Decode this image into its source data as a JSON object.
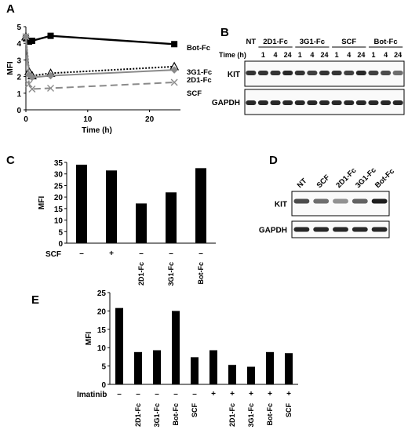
{
  "panels": {
    "A": {
      "letter": "A",
      "chart_data": {
        "type": "line",
        "xlabel": "Time (h)",
        "ylabel": "MFI",
        "xlim": [
          0,
          25
        ],
        "ylim": [
          0,
          5
        ],
        "xticks": [
          0,
          10,
          20
        ],
        "yticks": [
          0,
          1,
          2,
          3,
          4,
          5
        ],
        "series": [
          {
            "name": "Bot-Fc",
            "x": [
              0,
              0.5,
              1,
              4,
              24
            ],
            "values": [
              4.3,
              4.1,
              4.15,
              4.45,
              3.95
            ],
            "color": "#000000",
            "style": "solid",
            "marker": "square"
          },
          {
            "name": "3G1-Fc",
            "x": [
              0,
              0.5,
              1,
              4,
              24
            ],
            "values": [
              4.4,
              2.3,
              2.05,
              2.2,
              2.6
            ],
            "color": "#000000",
            "style": "dotted",
            "marker": "triangle"
          },
          {
            "name": "2D1-Fc",
            "x": [
              0,
              0.5,
              1,
              4,
              24
            ],
            "values": [
              4.4,
              2.1,
              1.95,
              2.05,
              2.4
            ],
            "color": "#8a8a8a",
            "style": "solid",
            "marker": "diamond"
          },
          {
            "name": "SCF",
            "x": [
              0,
              0.5,
              1,
              4,
              24
            ],
            "values": [
              4.4,
              1.55,
              1.25,
              1.3,
              1.65
            ],
            "color": "#8a8a8a",
            "style": "dashed",
            "marker": "x"
          }
        ]
      }
    },
    "B": {
      "letter": "B",
      "groups": [
        "NT",
        "2D1-Fc",
        "3G1-Fc",
        "SCF",
        "Bot-Fc"
      ],
      "time_label": "Time (h)",
      "times": [
        "1",
        "4",
        "24",
        "1",
        "4",
        "24",
        "1",
        "4",
        "24",
        "1",
        "4",
        "24"
      ],
      "rows": [
        "KIT",
        "GAPDH"
      ],
      "kit_intensity": [
        0.85,
        0.85,
        0.85,
        0.9,
        0.85,
        0.8,
        0.85,
        0.85,
        0.8,
        0.9,
        0.8,
        0.75,
        0.6
      ],
      "gapdh_intensity": [
        0.9,
        0.9,
        0.9,
        0.9,
        0.9,
        0.9,
        0.9,
        0.9,
        0.9,
        0.9,
        0.9,
        0.9,
        0.9
      ]
    },
    "C": {
      "letter": "C",
      "chart_data": {
        "type": "bar",
        "ylabel": "MFI",
        "ylim": [
          0,
          35
        ],
        "yticks": [
          0,
          5,
          10,
          15,
          20,
          25,
          30,
          35
        ],
        "row_label": "SCF",
        "categories": [
          "",
          "",
          "2D1-Fc",
          "3G1-Fc",
          "Bot-Fc"
        ],
        "signs": [
          "–",
          "+",
          "–",
          "–",
          "–"
        ],
        "values": [
          34,
          31.5,
          17.2,
          22,
          32.5
        ],
        "color": "#000000"
      }
    },
    "D": {
      "letter": "D",
      "lanes": [
        "NT",
        "SCF",
        "2D1-Fc",
        "3G1-Fc",
        "Bot-Fc"
      ],
      "rows": [
        "KIT",
        "GAPDH"
      ],
      "kit_intensity": [
        0.75,
        0.6,
        0.45,
        0.65,
        0.95
      ],
      "gapdh_intensity": [
        0.9,
        0.9,
        0.9,
        0.9,
        0.9
      ]
    },
    "E": {
      "letter": "E",
      "chart_data": {
        "type": "bar",
        "ylabel": "MFI",
        "ylim": [
          0,
          25
        ],
        "yticks": [
          0,
          5,
          10,
          15,
          20,
          25
        ],
        "row_label": "Imatinib",
        "categories": [
          "",
          "2D1-Fc",
          "3G1-Fc",
          "Bot-Fc",
          "SCF",
          "",
          "2D1-Fc",
          "3G1-Fc",
          "Bot-Fc",
          "SCF"
        ],
        "signs": [
          "–",
          "–",
          "–",
          "–",
          "–",
          "+",
          "+",
          "+",
          "+",
          "+"
        ],
        "values": [
          20.8,
          8.8,
          9.3,
          20,
          7.4,
          9.3,
          5.3,
          4.8,
          8.8,
          8.5
        ],
        "color": "#000000"
      }
    }
  }
}
